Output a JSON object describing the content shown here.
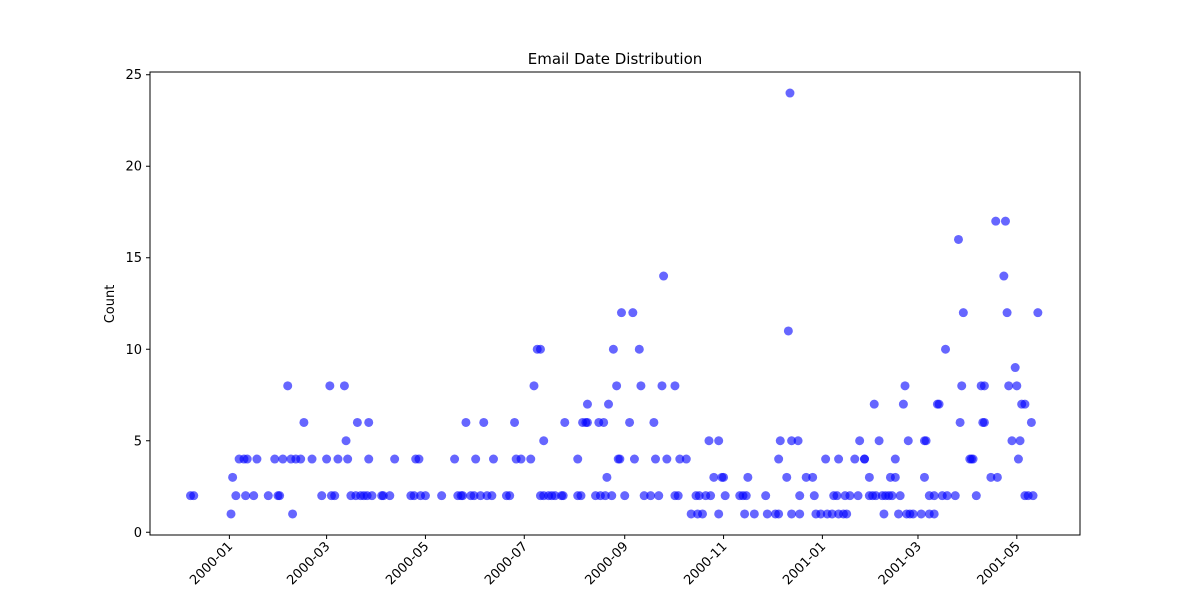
{
  "chart_data": {
    "type": "scatter",
    "title": "Email Date Distribution",
    "y_label": "Count",
    "color": "#0000ff",
    "xlim": [
      10908,
      11482
    ],
    "xticks": [
      {
        "value": 10957,
        "label": "2000-01"
      },
      {
        "value": 11017,
        "label": "2000-03"
      },
      {
        "value": 11078,
        "label": "2000-05"
      },
      {
        "value": 11139,
        "label": "2000-07"
      },
      {
        "value": 11201,
        "label": "2000-09"
      },
      {
        "value": 11262,
        "label": "2000-11"
      },
      {
        "value": 11323,
        "label": "2001-01"
      },
      {
        "value": 11382,
        "label": "2001-03"
      },
      {
        "value": 11443,
        "label": "2001-05"
      }
    ],
    "ylim": [
      -0.15,
      25.15
    ],
    "yticks": [
      0,
      5,
      10,
      15,
      20,
      25
    ],
    "x": [
      10933,
      10935,
      10958,
      10959,
      10961,
      10963,
      10966,
      10967,
      10968,
      10972,
      10974,
      10981,
      10985,
      10987,
      10988,
      10990,
      10993,
      10995,
      10996,
      10998,
      11001,
      11003,
      11008,
      11014,
      11017,
      11019,
      11020,
      11022,
      11024,
      11028,
      11029,
      11030,
      11032,
      11035,
      11036,
      11038,
      11040,
      11042,
      11043,
      11043,
      11045,
      11051,
      11052,
      11056,
      11059,
      11069,
      11071,
      11072,
      11074,
      11075,
      11078,
      11088,
      11096,
      11098,
      11100,
      11101,
      11103,
      11106,
      11108,
      11109,
      11112,
      11114,
      11116,
      11119,
      11120,
      11128,
      11130,
      11133,
      11134,
      11137,
      11143,
      11145,
      11147,
      11149,
      11149,
      11151,
      11151,
      11154,
      11156,
      11158,
      11162,
      11163,
      11164,
      11172,
      11172,
      11174,
      11175,
      11177,
      11178,
      11178,
      11183,
      11185,
      11186,
      11188,
      11189,
      11190,
      11191,
      11193,
      11194,
      11196,
      11197,
      11198,
      11199,
      11201,
      11204,
      11206,
      11207,
      11210,
      11211,
      11213,
      11217,
      11219,
      11220,
      11222,
      11224,
      11225,
      11227,
      11232,
      11232,
      11234,
      11235,
      11239,
      11242,
      11245,
      11246,
      11247,
      11249,
      11251,
      11253,
      11254,
      11256,
      11259,
      11259,
      11261,
      11262,
      11263,
      11272,
      11274,
      11275,
      11276,
      11277,
      11281,
      11288,
      11289,
      11294,
      11296,
      11296,
      11297,
      11301,
      11302,
      11303,
      11304,
      11304,
      11308,
      11309,
      11309,
      11313,
      11317,
      11318,
      11319,
      11322,
      11325,
      11326,
      11329,
      11330,
      11332,
      11333,
      11333,
      11336,
      11337,
      11338,
      11340,
      11343,
      11345,
      11346,
      11349,
      11349,
      11352,
      11352,
      11354,
      11355,
      11356,
      11358,
      11360,
      11361,
      11362,
      11364,
      11365,
      11366,
      11368,
      11368,
      11370,
      11371,
      11373,
      11374,
      11375,
      11376,
      11377,
      11379,
      11384,
      11386,
      11386,
      11387,
      11389,
      11389,
      11392,
      11392,
      11394,
      11395,
      11397,
      11399,
      11400,
      11405,
      11407,
      11408,
      11409,
      11410,
      11414,
      11415,
      11416,
      11418,
      11421,
      11422,
      11423,
      11423,
      11427,
      11430,
      11431,
      11435,
      11436,
      11437,
      11438,
      11440,
      11442,
      11443,
      11444,
      11445,
      11446,
      11448,
      11448,
      11450,
      11452,
      11453,
      11456
    ],
    "values": [
      2,
      2,
      1,
      3,
      2,
      4,
      4,
      2,
      4,
      2,
      4,
      2,
      4,
      2,
      2,
      4,
      8,
      4,
      1,
      4,
      4,
      6,
      4,
      2,
      4,
      8,
      2,
      2,
      4,
      8,
      5,
      4,
      2,
      2,
      6,
      2,
      2,
      2,
      4,
      6,
      2,
      2,
      2,
      2,
      4,
      2,
      2,
      4,
      4,
      2,
      2,
      2,
      4,
      2,
      2,
      2,
      6,
      2,
      2,
      4,
      2,
      6,
      2,
      2,
      4,
      2,
      2,
      6,
      4,
      4,
      4,
      8,
      10,
      10,
      2,
      5,
      2,
      2,
      2,
      2,
      2,
      2,
      6,
      2,
      4,
      2,
      6,
      6,
      7,
      6,
      2,
      6,
      2,
      6,
      2,
      3,
      7,
      2,
      10,
      8,
      4,
      4,
      12,
      2,
      6,
      12,
      4,
      10,
      8,
      2,
      2,
      6,
      4,
      2,
      8,
      14,
      4,
      2,
      8,
      2,
      4,
      4,
      1,
      2,
      1,
      2,
      1,
      2,
      5,
      2,
      3,
      1,
      5,
      3,
      3,
      2,
      2,
      2,
      1,
      2,
      3,
      1,
      2,
      1,
      1,
      1,
      4,
      5,
      3,
      11,
      24,
      5,
      1,
      5,
      2,
      1,
      3,
      3,
      2,
      1,
      1,
      4,
      1,
      1,
      2,
      2,
      1,
      4,
      1,
      2,
      1,
      2,
      4,
      2,
      5,
      4,
      4,
      3,
      2,
      2,
      7,
      2,
      5,
      2,
      1,
      2,
      2,
      3,
      2,
      4,
      3,
      1,
      2,
      7,
      8,
      1,
      5,
      1,
      1,
      1,
      3,
      5,
      5,
      2,
      1,
      1,
      2,
      7,
      7,
      2,
      10,
      2,
      2,
      16,
      6,
      8,
      12,
      4,
      4,
      4,
      2,
      8,
      6,
      6,
      8,
      3,
      17,
      3,
      14,
      17,
      12,
      8,
      5,
      9,
      8,
      4,
      5,
      7,
      2,
      7,
      2,
      6,
      2,
      12
    ]
  }
}
